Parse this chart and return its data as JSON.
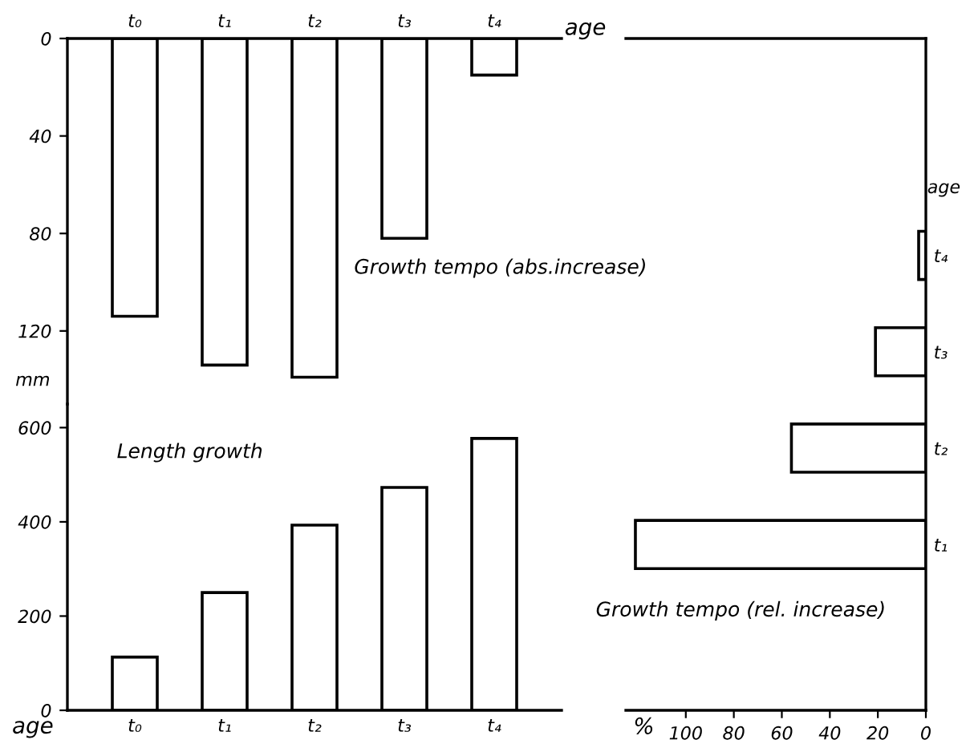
{
  "chart_data": [
    {
      "type": "bar",
      "title": "Growth tempo (abs.increase)",
      "xlabel": "age",
      "ylabel": "mm",
      "categories": [
        "t₀",
        "t₁",
        "t₂",
        "t₃",
        "t₄"
      ],
      "series": [
        {
          "color": "#ffffff",
          "values": [
            114,
            134,
            139,
            82,
            15
          ]
        }
      ],
      "ylim": [
        150,
        0
      ],
      "yticks": [
        0,
        40,
        80,
        120
      ],
      "grid": false,
      "legend": false
    },
    {
      "type": "bar",
      "title": "Length growth",
      "xlabel": "age",
      "categories": [
        "t₀",
        "t₁",
        "t₂",
        "t₃",
        "t₄"
      ],
      "series": [
        {
          "color": "#ffffff",
          "values": [
            113,
            250,
            393,
            473,
            577
          ]
        }
      ],
      "ylim": [
        0,
        650
      ],
      "yticks": [
        0,
        200,
        400,
        600
      ],
      "grid": false,
      "legend": false
    },
    {
      "type": "bar",
      "orientation": "horizontal",
      "title": "Growth tempo (rel. increase)",
      "xlabel": "%",
      "ylabel": "age",
      "categories": [
        "t₄",
        "t₃",
        "t₂",
        "t₁"
      ],
      "series": [
        {
          "color": "#ffffff",
          "values": [
            3,
            21,
            56,
            121
          ]
        }
      ],
      "xlim": [
        125,
        0
      ],
      "xticks": [
        100,
        80,
        60,
        40,
        20,
        0
      ],
      "grid": false,
      "legend": false
    }
  ]
}
